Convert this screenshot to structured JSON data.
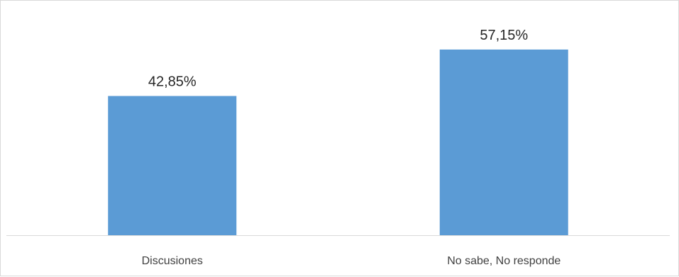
{
  "chart_data": {
    "type": "bar",
    "categories": [
      "Discusiones",
      "No sabe, No responde"
    ],
    "values": [
      42.85,
      57.15
    ],
    "value_labels": [
      "42,85%",
      "57,15%"
    ],
    "ylim": [
      0,
      70
    ],
    "bar_color": "#5b9bd5",
    "axis_color": "#d9d9d9",
    "grid": false,
    "legend": "none"
  }
}
